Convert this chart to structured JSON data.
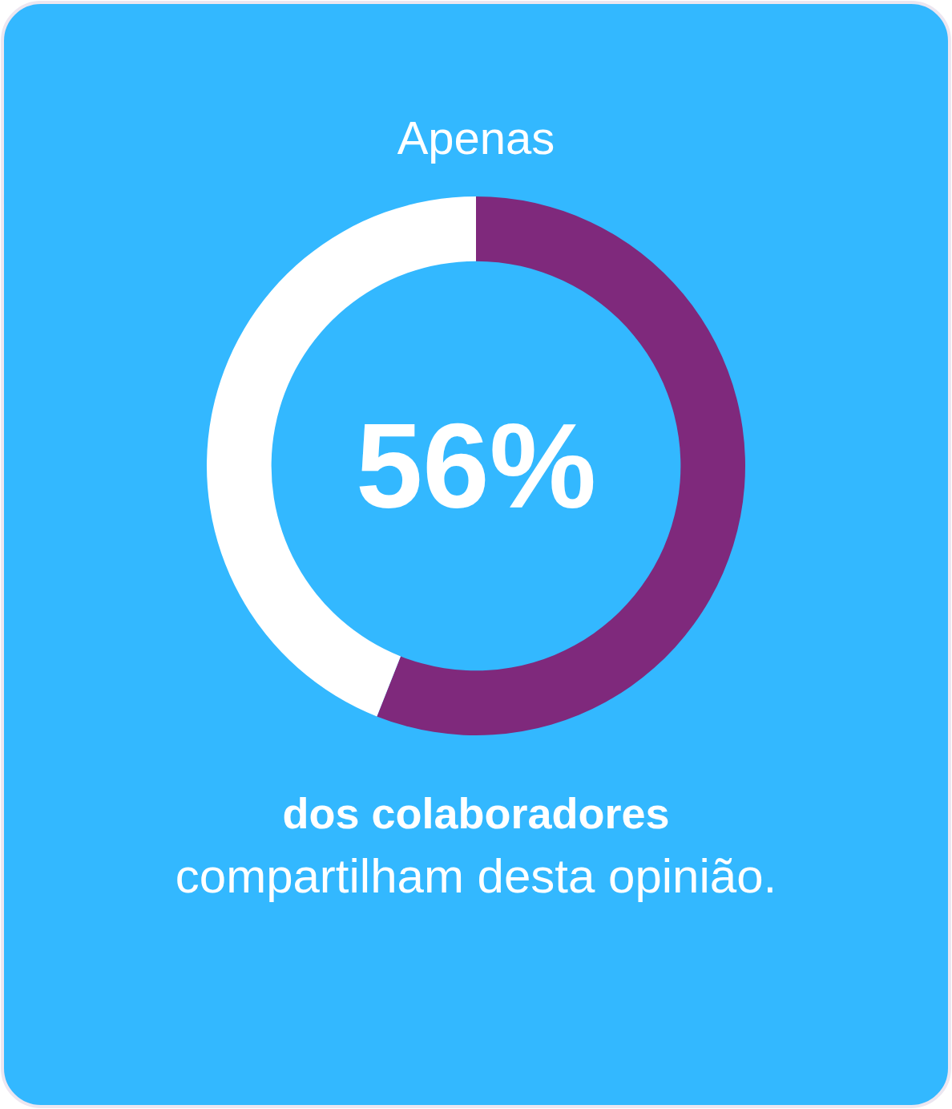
{
  "chart_data": {
    "type": "donut",
    "title": "Apenas",
    "categories": [
      null,
      null
    ],
    "values": [
      56,
      44
    ],
    "colors": [
      "#7f297c",
      "#ffffff"
    ],
    "annotations": [
      "56%",
      "dos colaboradores",
      "compartilham desta opinião."
    ]
  }
}
